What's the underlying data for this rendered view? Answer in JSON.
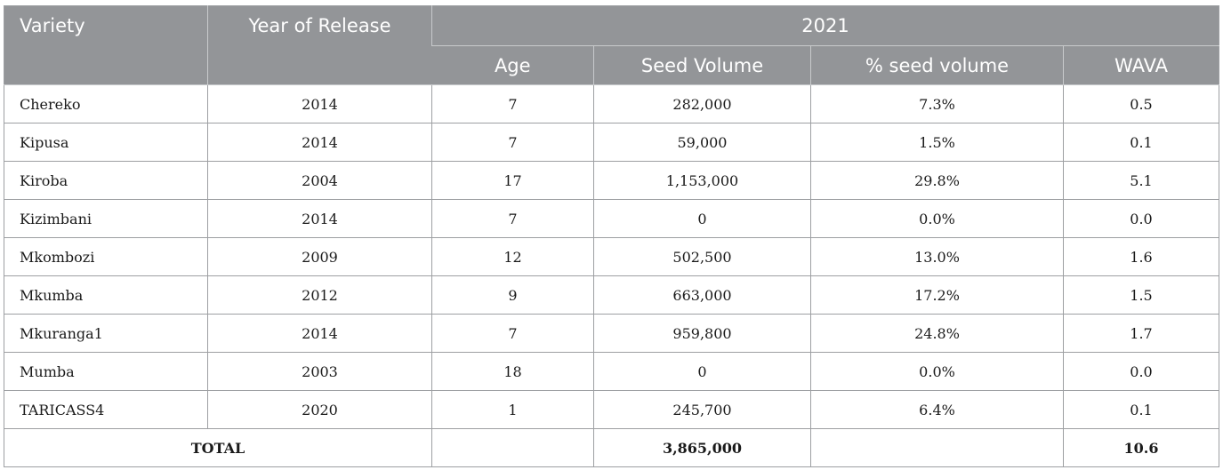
{
  "header": {
    "variety": "Variety",
    "year_of_release": "Year of Release",
    "year_group": "2021",
    "age": "Age",
    "seed_volume": "Seed Volume",
    "pct_seed_volume": "% seed volume",
    "wava": "WAVA"
  },
  "rows": [
    {
      "variety": "Chereko",
      "year": "2014",
      "age": "7",
      "seed_volume": "282,000",
      "pct": "7.3%",
      "wava": "0.5"
    },
    {
      "variety": "Kipusa",
      "year": "2014",
      "age": "7",
      "seed_volume": "59,000",
      "pct": "1.5%",
      "wava": "0.1"
    },
    {
      "variety": "Kiroba",
      "year": "2004",
      "age": "17",
      "seed_volume": "1,153,000",
      "pct": "29.8%",
      "wava": "5.1"
    },
    {
      "variety": "Kizimbani",
      "year": "2014",
      "age": "7",
      "seed_volume": "0",
      "pct": "0.0%",
      "wava": "0.0"
    },
    {
      "variety": "Mkombozi",
      "year": "2009",
      "age": "12",
      "seed_volume": "502,500",
      "pct": "13.0%",
      "wava": "1.6"
    },
    {
      "variety": "Mkumba",
      "year": "2012",
      "age": "9",
      "seed_volume": "663,000",
      "pct": "17.2%",
      "wava": "1.5"
    },
    {
      "variety": "Mkuranga1",
      "year": "2014",
      "age": "7",
      "seed_volume": "959,800",
      "pct": "24.8%",
      "wava": "1.7"
    },
    {
      "variety": "Mumba",
      "year": "2003",
      "age": "18",
      "seed_volume": "0",
      "pct": "0.0%",
      "wava": "0.0"
    },
    {
      "variety": "TARICASS4",
      "year": "2020",
      "age": "1",
      "seed_volume": "245,700",
      "pct": "6.4%",
      "wava": "0.1"
    }
  ],
  "total": {
    "label": "TOTAL",
    "seed_volume": "3,865,000",
    "wava": "10.6"
  },
  "colors": {
    "header_bg": "#939598",
    "header_text": "#ffffff",
    "border": "#9d9fa2"
  }
}
